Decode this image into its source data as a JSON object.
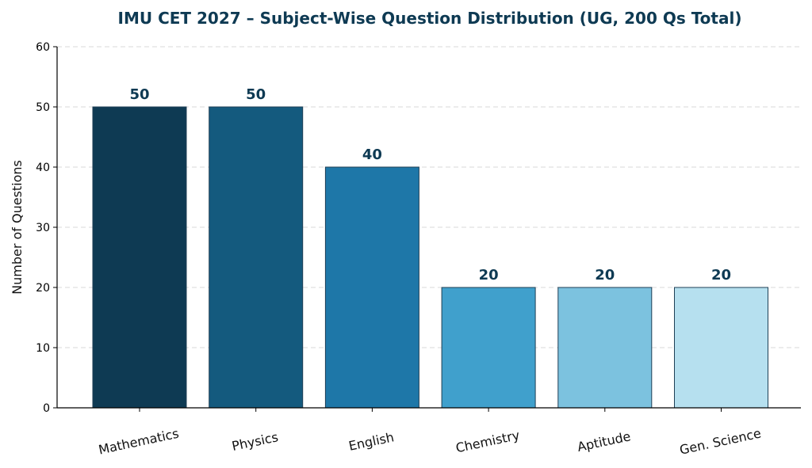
{
  "chart_data": {
    "type": "bar",
    "title": "IMU CET 2027 – Subject-Wise Question Distribution (UG, 200 Qs Total)",
    "xlabel": "",
    "ylabel": "Number of Questions",
    "categories": [
      "Mathematics",
      "Physics",
      "English",
      "Chemistry",
      "Aptitude",
      "Gen. Science"
    ],
    "values": [
      50,
      50,
      40,
      20,
      20,
      20
    ],
    "data_labels": [
      "50",
      "50",
      "40",
      "20",
      "20",
      "20"
    ],
    "ylim": [
      0,
      60
    ],
    "yticks": [
      "0",
      "10",
      "20",
      "30",
      "40",
      "50",
      "60"
    ],
    "grid": "horizontal dashed",
    "legend": "none",
    "colors": [
      "#0e3a53",
      "#145a7e",
      "#1e77a8",
      "#40a0cc",
      "#7cc2df",
      "#b6e0ef"
    ],
    "title_color": "#0e3a53",
    "label_color": "#0e3a53"
  }
}
